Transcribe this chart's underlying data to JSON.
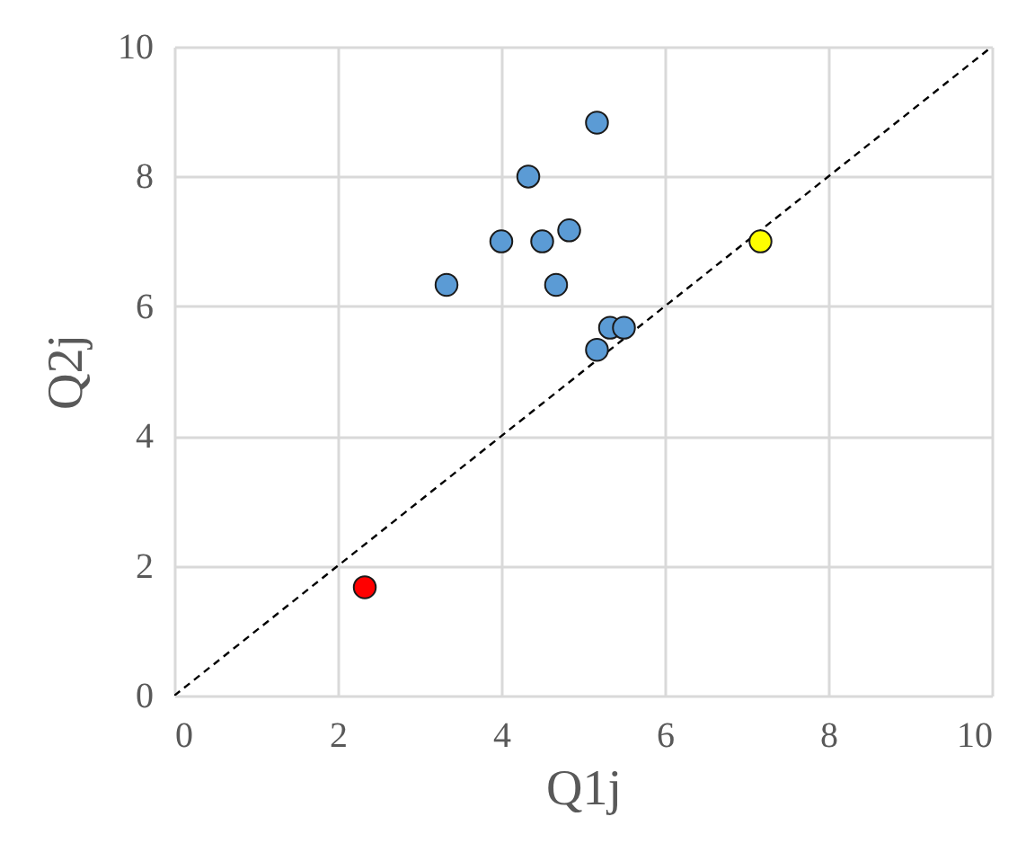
{
  "chart_data": {
    "type": "scatter",
    "xlabel": "Q1j",
    "ylabel": "Q2j",
    "xlim": [
      0,
      10
    ],
    "ylim": [
      0,
      10
    ],
    "xticks": [
      0,
      2,
      4,
      6,
      8,
      10
    ],
    "yticks": [
      0,
      2,
      4,
      6,
      8,
      10
    ],
    "grid": true,
    "marker": "circle",
    "series": [
      {
        "type": "line",
        "color": "#000000",
        "line_style": "dashed",
        "marker": "none",
        "x": [
          0,
          10
        ],
        "values": [
          0,
          10
        ]
      },
      {
        "color": "#5b9bd5",
        "x": [
          5.17,
          4.33,
          4,
          4.5,
          4.83,
          3.33,
          4.67,
          5.33,
          5.5,
          5.17
        ],
        "values": [
          8.83,
          8,
          7,
          7,
          7.17,
          6.33,
          6.33,
          5.67,
          5.67,
          5.33
        ]
      },
      {
        "color": "#ffff00",
        "x": [
          7.17
        ],
        "values": [
          7
        ]
      },
      {
        "color": "#ff0000",
        "x": [
          2.33
        ],
        "values": [
          1.67
        ]
      }
    ]
  }
}
